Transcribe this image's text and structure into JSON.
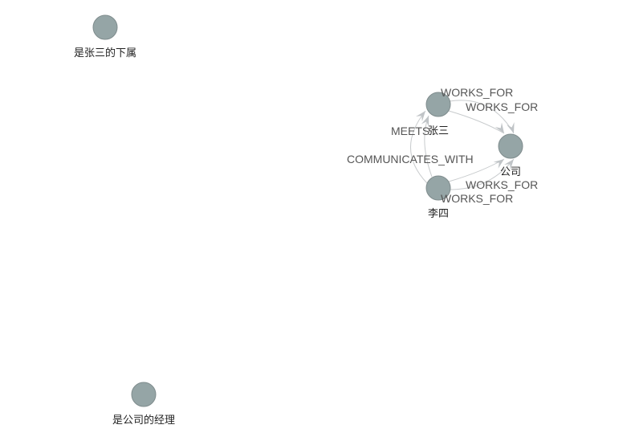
{
  "colors": {
    "node_fill": "#95a5a6",
    "node_stroke": "#7f8c8d",
    "edge_stroke": "#c8cbcd",
    "arrow_fill": "#c0c4c7",
    "edge_label": "#555555",
    "node_label": "#222222"
  },
  "graph": {
    "nodes": [
      {
        "id": "subordinate",
        "label": "是张三的下属"
      },
      {
        "id": "manager",
        "label": "是公司的经理"
      },
      {
        "id": "zhangsan",
        "label": "张三"
      },
      {
        "id": "lisi",
        "label": "李四"
      },
      {
        "id": "company",
        "label": "公司"
      }
    ],
    "edges": [
      {
        "id": "e1",
        "source": "zhangsan",
        "target": "company",
        "label": "WORKS_FOR"
      },
      {
        "id": "e2",
        "source": "zhangsan",
        "target": "company",
        "label": "WORKS_FOR"
      },
      {
        "id": "e3",
        "source": "lisi",
        "target": "company",
        "label": "WORKS_FOR"
      },
      {
        "id": "e4",
        "source": "lisi",
        "target": "company",
        "label": "WORKS_FOR"
      },
      {
        "id": "e5",
        "source": "lisi",
        "target": "zhangsan",
        "label": "MEETS"
      },
      {
        "id": "e6",
        "source": "lisi",
        "target": "zhangsan",
        "label": "COMMUNICATES_WITH"
      }
    ]
  }
}
